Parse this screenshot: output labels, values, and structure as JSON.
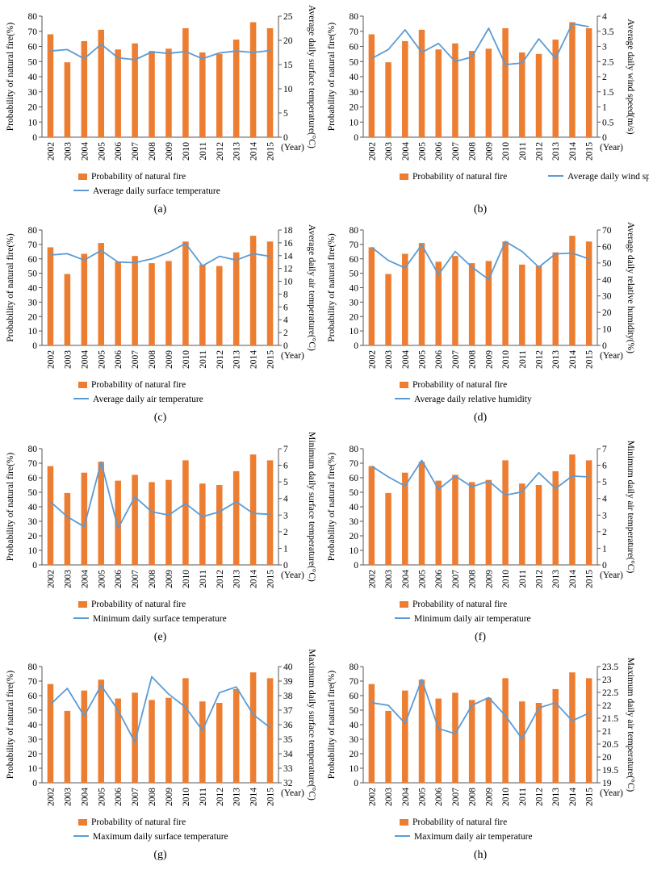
{
  "chart_data": [
    {
      "type": "bar",
      "panel_label": "(a)",
      "categories": [
        "2002",
        "2003",
        "2004",
        "2005",
        "2006",
        "2007",
        "2008",
        "2009",
        "2010",
        "2011",
        "2012",
        "2013",
        "2014",
        "2015"
      ],
      "x_unit_label": "(Year)",
      "ylabel": "Probability of natural fire(%)",
      "y2label": "Average daily surface temperature(°C)",
      "ylim": [
        0,
        80
      ],
      "yticks": [
        0,
        10,
        20,
        30,
        40,
        50,
        60,
        70,
        80
      ],
      "y2lim": [
        0,
        25
      ],
      "y2ticks": [
        0,
        5,
        10,
        15,
        20,
        25
      ],
      "series": [
        {
          "name": "Probability of natural fire",
          "kind": "bar",
          "axis": "left",
          "values": [
            68,
            49.5,
            63.5,
            71,
            58,
            62,
            57,
            58.5,
            72,
            56,
            55,
            64.5,
            76,
            72
          ]
        },
        {
          "name": "Average daily surface temperature",
          "kind": "line",
          "axis": "right",
          "values": [
            17.8,
            18.1,
            16.2,
            19.2,
            16.4,
            16,
            17.6,
            17.3,
            17.7,
            16.2,
            17.4,
            17.8,
            17.5,
            17.9
          ]
        }
      ]
    },
    {
      "type": "bar",
      "panel_label": "(b)",
      "categories": [
        "2002",
        "2003",
        "2004",
        "2005",
        "2006",
        "2007",
        "2008",
        "2009",
        "2010",
        "2011",
        "2012",
        "2013",
        "2014",
        "2015"
      ],
      "x_unit_label": "(Year)",
      "ylabel": "Probability of natural fire(%)",
      "y2label": "Average daily wind speed(m/s)",
      "ylim": [
        0,
        80
      ],
      "yticks": [
        0,
        10,
        20,
        30,
        40,
        50,
        60,
        70,
        80
      ],
      "y2lim": [
        0,
        4
      ],
      "y2ticks": [
        0,
        0.5,
        1,
        1.5,
        2,
        2.5,
        3,
        3.5,
        4
      ],
      "series": [
        {
          "name": "Probability of natural fire",
          "kind": "bar",
          "axis": "left",
          "values": [
            68,
            49.5,
            63.5,
            71,
            58,
            62,
            57,
            58.5,
            72,
            56,
            55,
            64.5,
            76,
            72
          ]
        },
        {
          "name": "Average daily wind speed",
          "kind": "line",
          "axis": "right",
          "values": [
            2.6,
            2.9,
            3.55,
            2.8,
            3.1,
            2.5,
            2.65,
            3.6,
            2.4,
            2.45,
            3.25,
            2.6,
            3.75,
            3.65
          ]
        }
      ]
    },
    {
      "type": "bar",
      "panel_label": "(c)",
      "categories": [
        "2002",
        "2003",
        "2004",
        "2005",
        "2006",
        "2007",
        "2008",
        "2009",
        "2010",
        "2011",
        "2012",
        "2013",
        "2014",
        "2015"
      ],
      "x_unit_label": "(Year)",
      "ylabel": "Probability of natural fire(%)",
      "y2label": "Average daily air temperature(°C)",
      "ylim": [
        0,
        80
      ],
      "yticks": [
        0,
        10,
        20,
        30,
        40,
        50,
        60,
        70,
        80
      ],
      "y2lim": [
        0,
        18
      ],
      "y2ticks": [
        0,
        2,
        4,
        6,
        8,
        10,
        12,
        14,
        16,
        18
      ],
      "series": [
        {
          "name": "Probability of natural fire",
          "kind": "bar",
          "axis": "left",
          "values": [
            68,
            49.5,
            63.5,
            71,
            58,
            62,
            57,
            58.5,
            72,
            56,
            55,
            64.5,
            76,
            72
          ]
        },
        {
          "name": "Average daily air temperature",
          "kind": "line",
          "axis": "right",
          "values": [
            14.1,
            14.3,
            13.3,
            14.8,
            13,
            12.9,
            13.5,
            14.5,
            15.9,
            12.4,
            13.9,
            13.3,
            14.3,
            13.9
          ]
        }
      ]
    },
    {
      "type": "bar",
      "panel_label": "(d)",
      "categories": [
        "2002",
        "2003",
        "2004",
        "2005",
        "2006",
        "2007",
        "2008",
        "2009",
        "2010",
        "2011",
        "2012",
        "2013",
        "2014",
        "2015"
      ],
      "x_unit_label": "(Year)",
      "ylabel": "Probability of natural fire(%)",
      "y2label": "Average daily relative humidity(%)",
      "ylim": [
        0,
        80
      ],
      "yticks": [
        0,
        10,
        20,
        30,
        40,
        50,
        60,
        70,
        80
      ],
      "y2lim": [
        0,
        70
      ],
      "y2ticks": [
        0,
        10,
        20,
        30,
        40,
        50,
        60,
        70
      ],
      "series": [
        {
          "name": "Probability of natural fire",
          "kind": "bar",
          "axis": "left",
          "values": [
            68,
            49.5,
            63.5,
            71,
            58,
            62,
            57,
            58.5,
            72,
            56,
            55,
            64.5,
            76,
            72
          ]
        },
        {
          "name": "Average daily relative humidity",
          "kind": "line",
          "axis": "right",
          "values": [
            59.5,
            51.5,
            47,
            61,
            43,
            57,
            47.5,
            40,
            63,
            57,
            47.5,
            55.5,
            56,
            52.5
          ]
        }
      ]
    },
    {
      "type": "bar",
      "panel_label": "(e)",
      "categories": [
        "2002",
        "2003",
        "2004",
        "2005",
        "2006",
        "2007",
        "2008",
        "2009",
        "2010",
        "2011",
        "2012",
        "2013",
        "2014",
        "2015"
      ],
      "x_unit_label": "(Year)",
      "ylabel": "Probability of natural fire(%)",
      "y2label": "Minimum daily surface temperature(°C)",
      "ylim": [
        0,
        80
      ],
      "yticks": [
        0,
        10,
        20,
        30,
        40,
        50,
        60,
        70,
        80
      ],
      "y2lim": [
        0,
        7
      ],
      "y2ticks": [
        0,
        1,
        2,
        3,
        4,
        5,
        6,
        7
      ],
      "series": [
        {
          "name": "Probability of natural fire",
          "kind": "bar",
          "axis": "left",
          "values": [
            68,
            49.5,
            63.5,
            71,
            58,
            62,
            57,
            58.5,
            72,
            56,
            55,
            64.5,
            76,
            72
          ]
        },
        {
          "name": "Minimum daily surface temperature",
          "kind": "line",
          "axis": "right",
          "values": [
            3.8,
            2.9,
            2.3,
            6.2,
            2.2,
            4.1,
            3.2,
            3,
            3.7,
            2.9,
            3.2,
            3.8,
            3.1,
            3.05
          ]
        }
      ]
    },
    {
      "type": "bar",
      "panel_label": "(f)",
      "categories": [
        "2002",
        "2003",
        "2004",
        "2005",
        "2006",
        "2007",
        "2008",
        "2009",
        "2010",
        "2011",
        "2012",
        "2013",
        "2014",
        "2015"
      ],
      "x_unit_label": "(Year)",
      "ylabel": "Probability of natural fire(%)",
      "y2label": "Minimum daily air temperature(°C)",
      "ylim": [
        0,
        80
      ],
      "yticks": [
        0,
        10,
        20,
        30,
        40,
        50,
        60,
        70,
        80
      ],
      "y2lim": [
        0,
        7
      ],
      "y2ticks": [
        0,
        1,
        2,
        3,
        4,
        5,
        6,
        7
      ],
      "series": [
        {
          "name": "Probability of natural fire",
          "kind": "bar",
          "axis": "left",
          "values": [
            68,
            49.5,
            63.5,
            71,
            58,
            62,
            57,
            58.5,
            72,
            56,
            55,
            64.5,
            76,
            72
          ]
        },
        {
          "name": "Minimum daily air temperature",
          "kind": "line",
          "axis": "right",
          "values": [
            5.95,
            5.3,
            4.75,
            6.3,
            4.55,
            5.35,
            4.7,
            5.05,
            4.2,
            4.4,
            5.55,
            4.6,
            5.35,
            5.3
          ]
        }
      ]
    },
    {
      "type": "bar",
      "panel_label": "(g)",
      "categories": [
        "2002",
        "2003",
        "2004",
        "2005",
        "2006",
        "2007",
        "2008",
        "2009",
        "2010",
        "2011",
        "2012",
        "2013",
        "2014",
        "2015"
      ],
      "x_unit_label": "(Year)",
      "ylabel": "Probability of natural fire(%)",
      "y2label": "Maximum daily surface temperature(°C)",
      "ylim": [
        0,
        80
      ],
      "yticks": [
        0,
        10,
        20,
        30,
        40,
        50,
        60,
        70,
        80
      ],
      "y2lim": [
        32,
        40
      ],
      "y2ticks": [
        32,
        33,
        34,
        35,
        36,
        37,
        38,
        39,
        40
      ],
      "series": [
        {
          "name": "Probability of natural fire",
          "kind": "bar",
          "axis": "left",
          "values": [
            68,
            49.5,
            63.5,
            71,
            58,
            62,
            57,
            58.5,
            72,
            56,
            55,
            64.5,
            76,
            72
          ]
        },
        {
          "name": "Maximum daily surface temperature",
          "kind": "line",
          "axis": "right",
          "values": [
            37.4,
            38.5,
            36.6,
            38.7,
            37,
            34.8,
            39.3,
            38.1,
            37.2,
            35.6,
            38.2,
            38.6,
            36.7,
            35.8
          ]
        }
      ]
    },
    {
      "type": "bar",
      "panel_label": "(h)",
      "categories": [
        "2002",
        "2003",
        "2004",
        "2005",
        "2006",
        "2007",
        "2008",
        "2009",
        "2010",
        "2011",
        "2012",
        "2013",
        "2014",
        "2015"
      ],
      "x_unit_label": "(Year)",
      "ylabel": "Probability of natural fire(%)",
      "y2label": "Maximum daily air temperature(°C)",
      "ylim": [
        0,
        80
      ],
      "yticks": [
        0,
        10,
        20,
        30,
        40,
        50,
        60,
        70,
        80
      ],
      "y2lim": [
        19,
        23.5
      ],
      "y2ticks": [
        19,
        19.5,
        20,
        20.5,
        21,
        21.5,
        22,
        22.5,
        23,
        23.5
      ],
      "series": [
        {
          "name": "Probability of natural fire",
          "kind": "bar",
          "axis": "left",
          "values": [
            68,
            49.5,
            63.5,
            71,
            58,
            62,
            57,
            58.5,
            72,
            56,
            55,
            64.5,
            76,
            72
          ]
        },
        {
          "name": "Maximum daily air temperature",
          "kind": "line",
          "axis": "right",
          "values": [
            22.1,
            22,
            21.3,
            23,
            21.1,
            20.9,
            22,
            22.3,
            21.6,
            20.7,
            21.9,
            22.1,
            21.4,
            21.7
          ]
        }
      ]
    }
  ],
  "colors": {
    "bar": "#ed7d31",
    "line": "#5b9bd5",
    "axis": "#555555"
  }
}
